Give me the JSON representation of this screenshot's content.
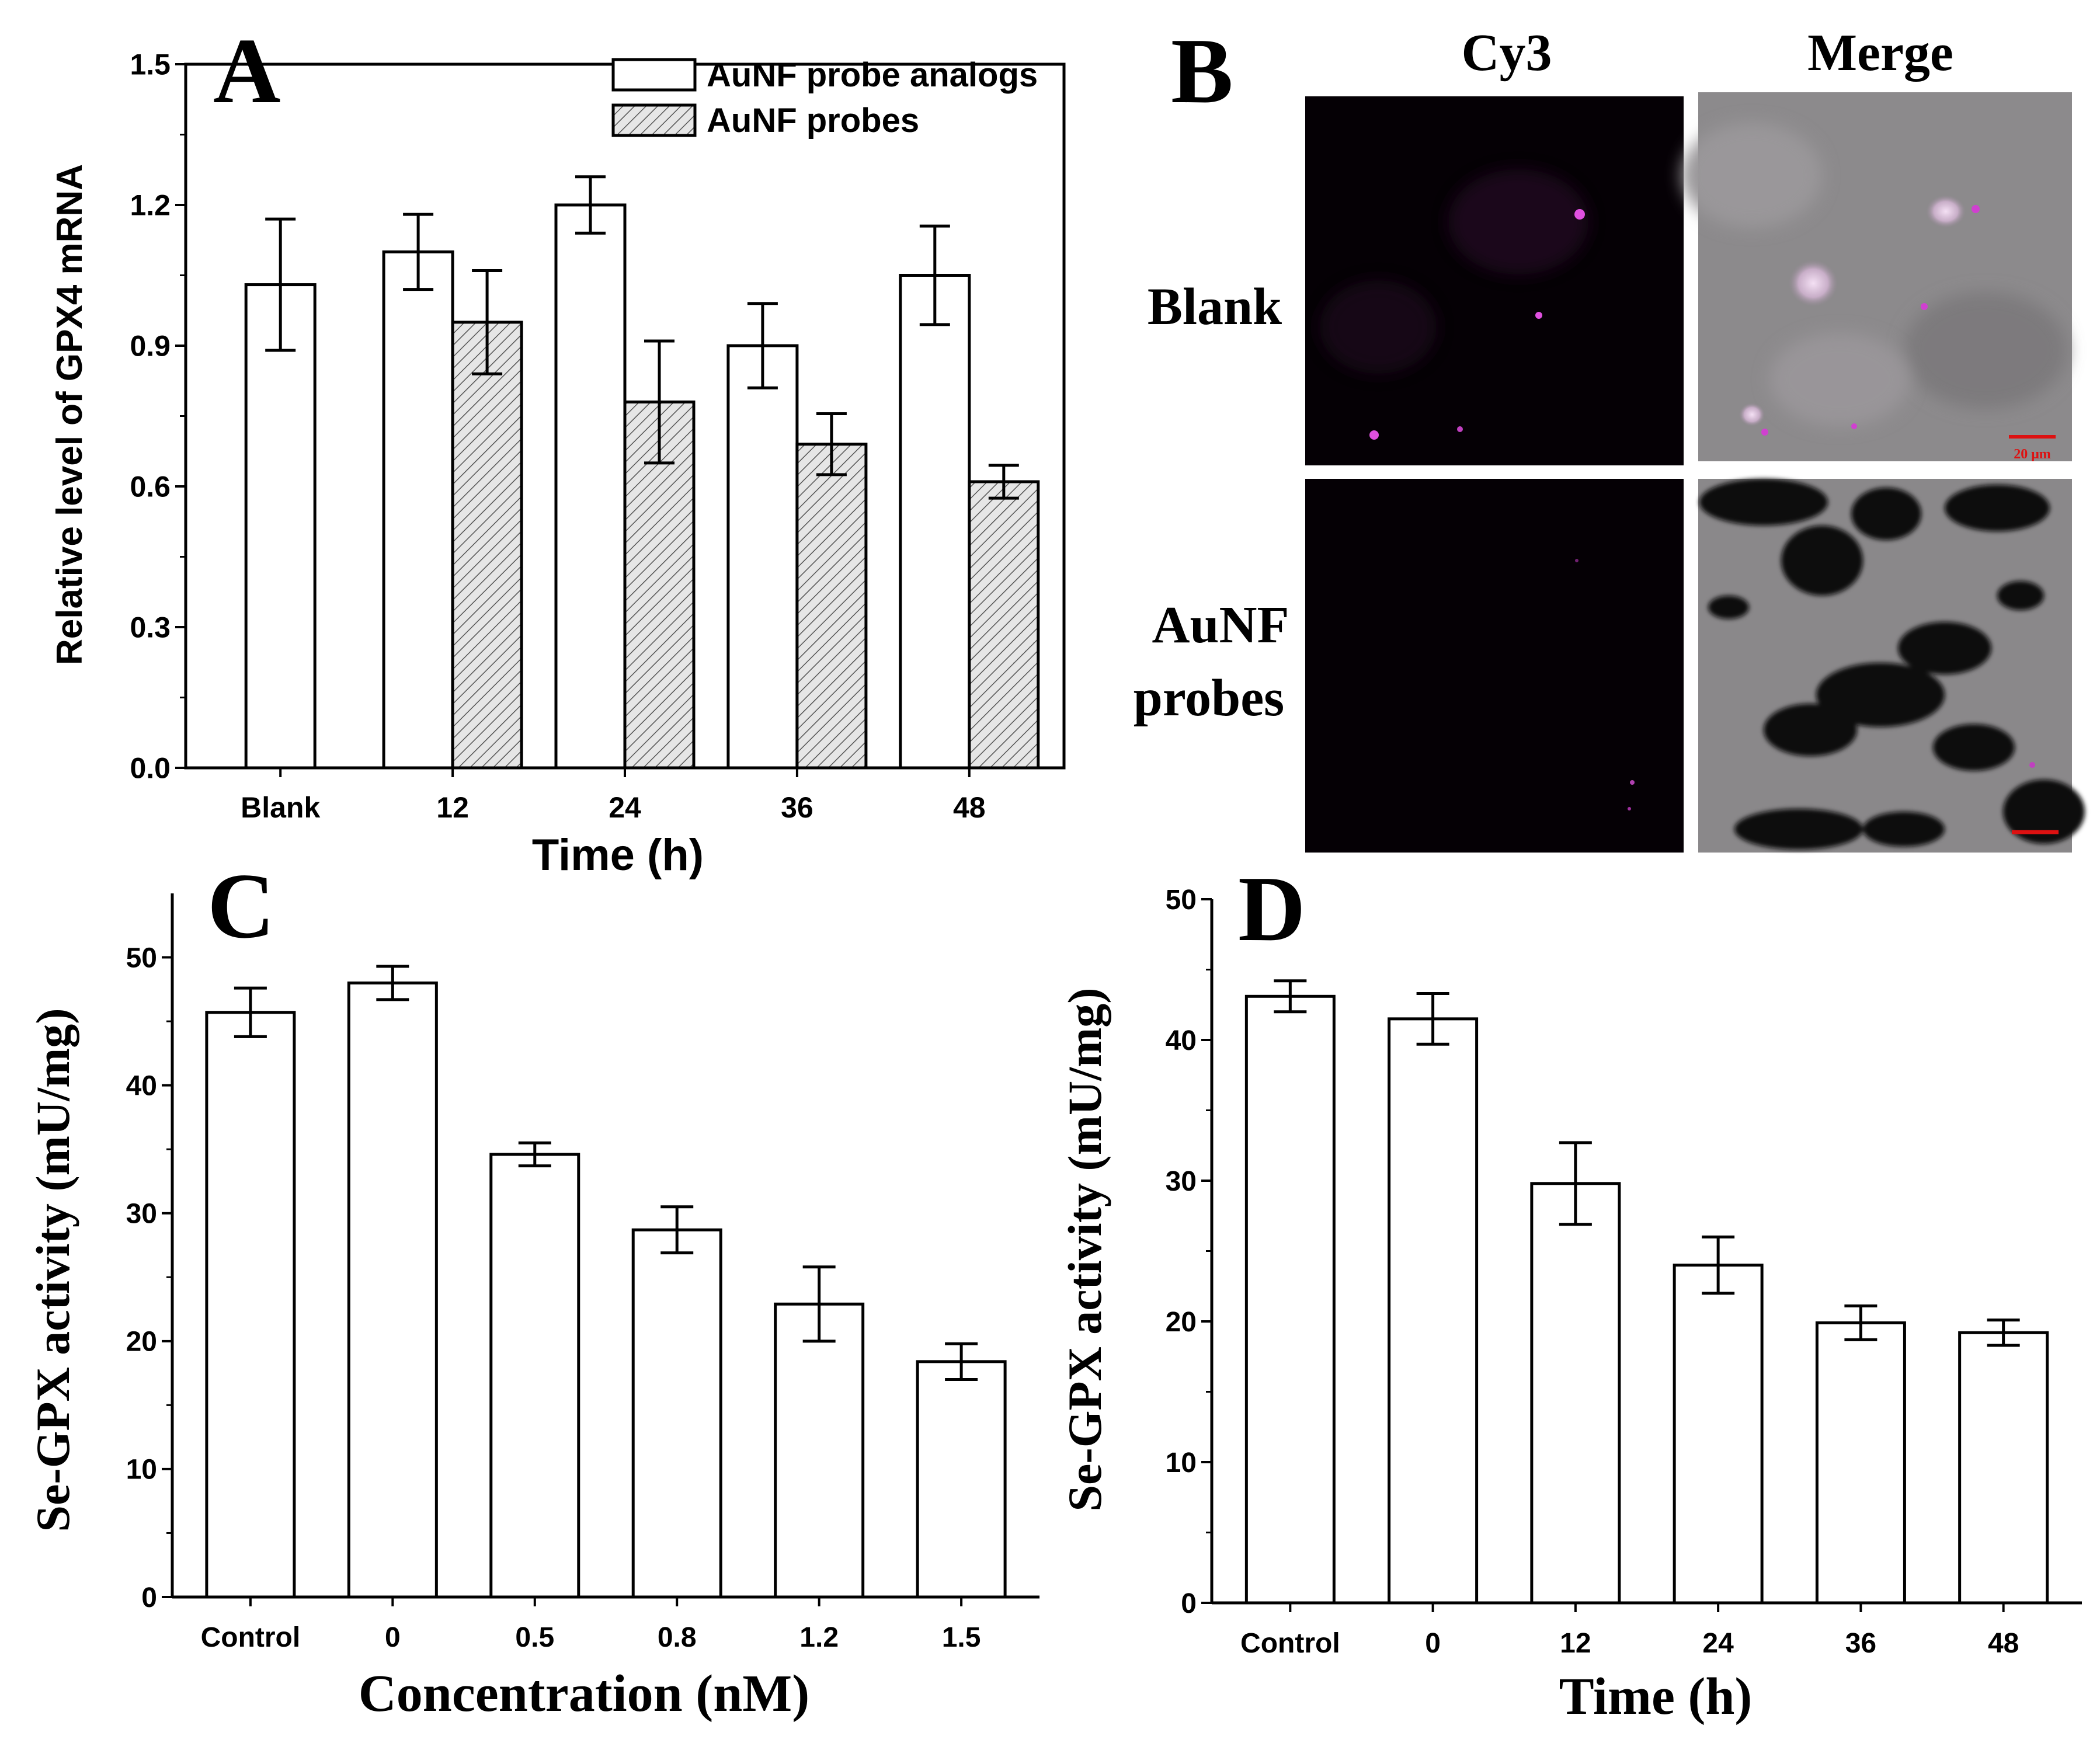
{
  "panels": {
    "A": {
      "letter": "A",
      "chart_data": {
        "type": "bar",
        "categories": [
          "Blank",
          "12",
          "24",
          "36",
          "48"
        ],
        "series": [
          {
            "name": "AuNF probe analogs",
            "values": [
              1.03,
              1.1,
              1.2,
              0.9,
              1.05
            ],
            "errors": [
              0.14,
              0.08,
              0.06,
              0.09,
              0.105
            ],
            "pattern": "open"
          },
          {
            "name": "AuNF probes",
            "values": [
              null,
              0.95,
              0.78,
              0.69,
              0.61
            ],
            "errors": [
              null,
              0.11,
              0.13,
              0.065,
              0.035
            ],
            "pattern": "hatched"
          }
        ],
        "xlabel": "Time (h)",
        "ylabel": "Relative level of GPX4 mRNA",
        "ylim": [
          0,
          1.5
        ],
        "yticks": [
          "0.0",
          "0.3",
          "0.6",
          "0.9",
          "1.2",
          "1.5"
        ],
        "legend_position": "top-right",
        "grid": false
      }
    },
    "B": {
      "letter": "B",
      "columns": [
        "Cy3",
        "Merge"
      ],
      "rows": [
        "Blank",
        "AuNF",
        "probes"
      ],
      "scale_bar_label": "20 μm",
      "colors": {
        "fluorescence": "#d040d0",
        "background": "#000000",
        "scale_bar": "#dd1111"
      }
    },
    "C": {
      "letter": "C",
      "chart_data": {
        "type": "bar",
        "categories": [
          "Control",
          "0",
          "0.5",
          "0.8",
          "1.2",
          "1.5"
        ],
        "values": [
          45.7,
          48.0,
          34.6,
          28.7,
          22.9,
          18.4
        ],
        "errors": [
          1.9,
          1.3,
          0.9,
          1.8,
          2.9,
          1.4
        ],
        "xlabel": "Concentration (nM)",
        "ylabel": "Se-GPX  activity (mU/mg)",
        "ylim": [
          0,
          55
        ],
        "yticks": [
          "0",
          "10",
          "20",
          "30",
          "40",
          "50"
        ],
        "grid": false
      }
    },
    "D": {
      "letter": "D",
      "chart_data": {
        "type": "bar",
        "categories": [
          "Control",
          "0",
          "12",
          "24",
          "36",
          "48"
        ],
        "values": [
          43.1,
          41.5,
          29.8,
          24.0,
          19.9,
          19.2
        ],
        "errors": [
          1.1,
          1.8,
          2.9,
          2.0,
          1.2,
          0.9
        ],
        "xlabel": "Time (h)",
        "ylabel": "Se-GPX  activity (mU/mg)",
        "ylim": [
          0,
          50
        ],
        "yticks": [
          "0",
          "10",
          "20",
          "30",
          "40",
          "50"
        ],
        "grid": false
      }
    }
  }
}
